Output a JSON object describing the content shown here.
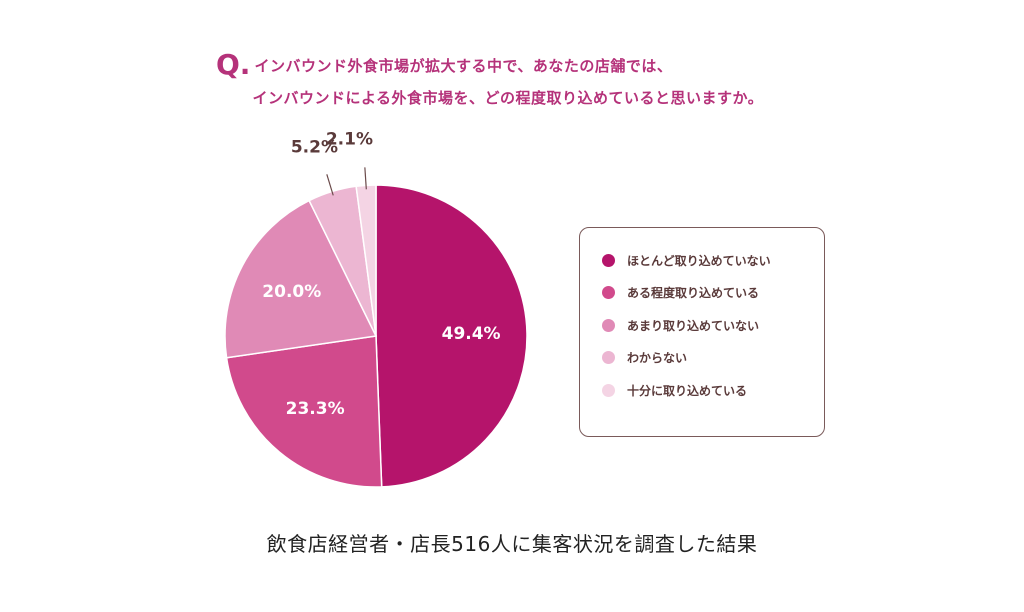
{
  "question": {
    "mark": "Q.",
    "line1": "インバウンド外食市場が拡大する中で、あなたの店舗では、",
    "line2": "インバウンドによる外食市場を、どの程度取り込めていると思いますか。"
  },
  "chart_data": {
    "type": "pie",
    "slices": [
      {
        "label": "ほとんど取り込めていない",
        "value": 49.4,
        "display": "49.4%",
        "color": "#b5146b"
      },
      {
        "label": "ある程度取り込めている",
        "value": 23.3,
        "display": "23.3%",
        "color": "#d14a8c"
      },
      {
        "label": "あまり取り込めていない",
        "value": 20.0,
        "display": "20.0%",
        "color": "#e08ab6"
      },
      {
        "label": "わからない",
        "value": 5.2,
        "display": "5.2%",
        "color": "#ecb6d2"
      },
      {
        "label": "十分に取り込めている",
        "value": 2.1,
        "display": "2.1%",
        "color": "#f4d4e4"
      }
    ]
  },
  "caption": "飲食店経営者・店長516人に集客状況を調査した結果"
}
